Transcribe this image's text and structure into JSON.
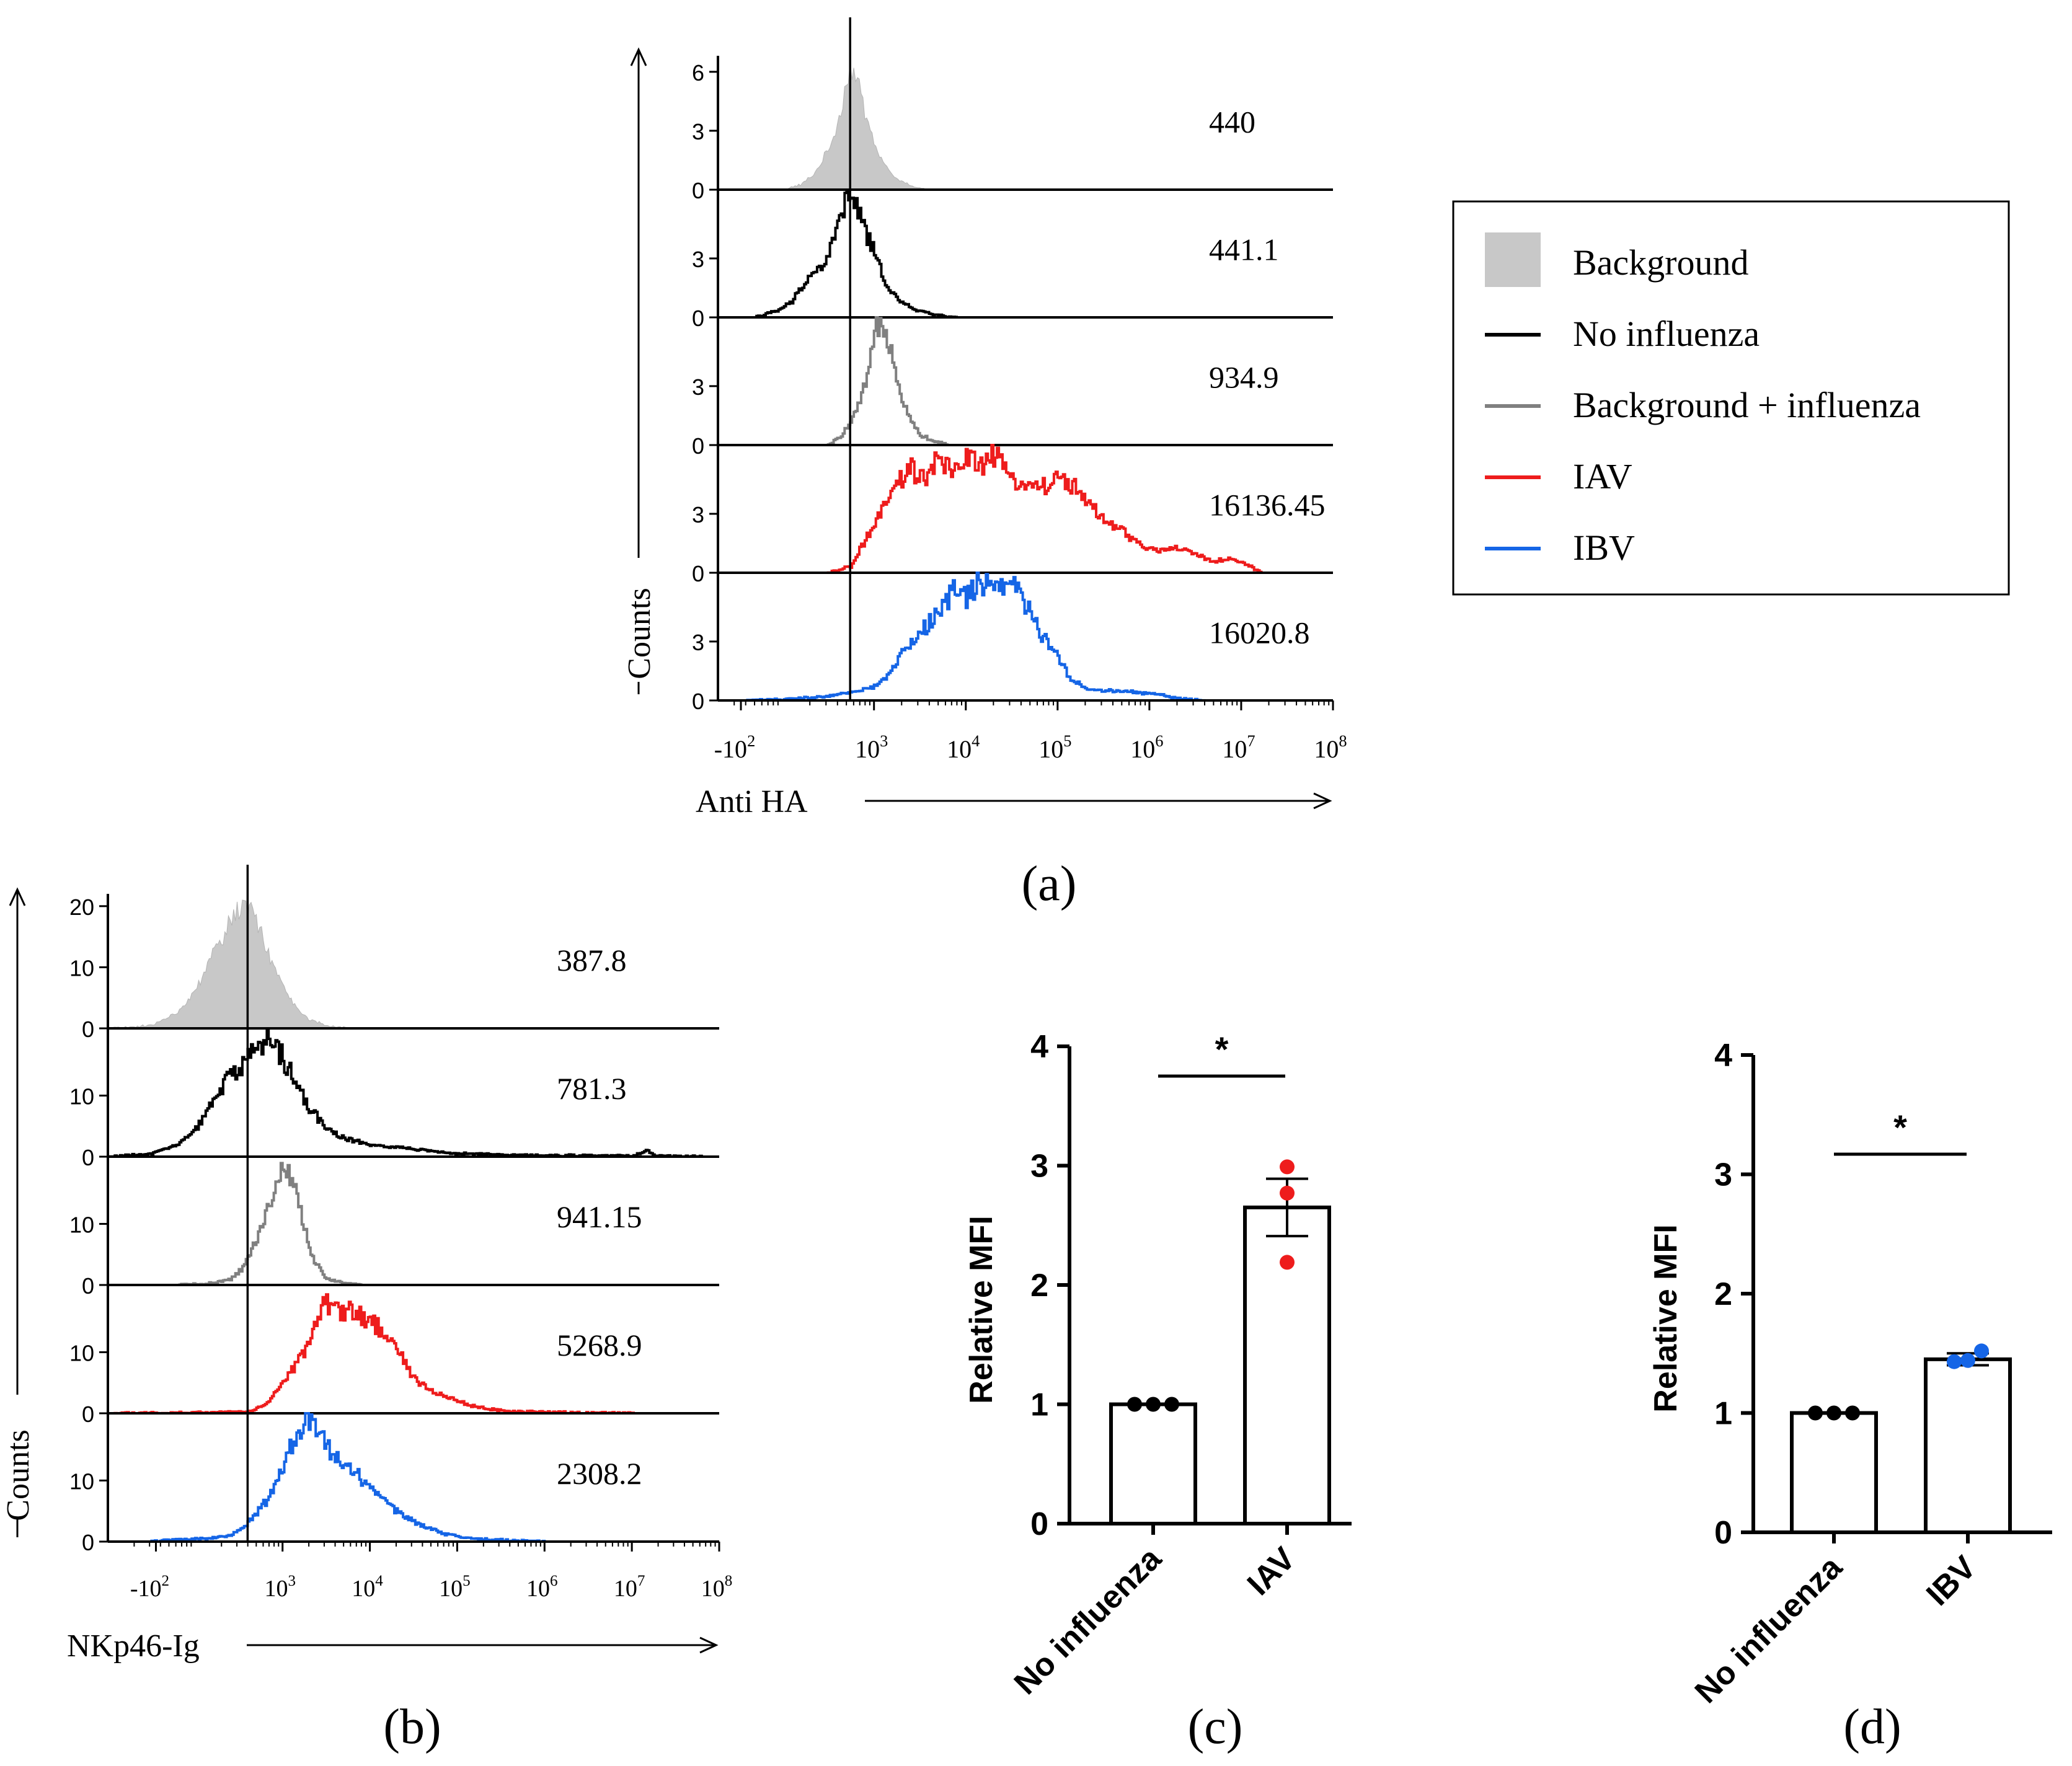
{
  "panels": {
    "a": {
      "label": "(a)"
    },
    "b": {
      "label": "(b)"
    },
    "c": {
      "label": "(c)"
    },
    "d": {
      "label": "(d)"
    }
  },
  "colors": {
    "background": "#c8c8c8",
    "no_influenza": "#000000",
    "background_influenza": "#808080",
    "iav": "#ee1c1c",
    "ibv": "#1565e6",
    "bar_fill": "#ffffff",
    "axis": "#000000"
  },
  "legend": {
    "items": [
      {
        "key": "background",
        "label": "Background",
        "kind": "fill"
      },
      {
        "key": "no_influenza",
        "label": "No influenza",
        "kind": "line"
      },
      {
        "key": "background_influenza",
        "label": "Background + influenza",
        "kind": "line"
      },
      {
        "key": "iav",
        "label": "IAV",
        "kind": "line"
      },
      {
        "key": "ibv",
        "label": "IBV",
        "kind": "line"
      }
    ]
  },
  "chart_data": [
    {
      "id": "a",
      "type": "histogram",
      "xlabel": "Anti HA",
      "ylabel": "Counts",
      "xscale": "log",
      "xticks": [
        {
          "base": "-10",
          "exp": "2",
          "log": 1.55
        },
        {
          "base": "10",
          "exp": "3",
          "log": 3
        },
        {
          "base": "10",
          "exp": "4",
          "log": 4
        },
        {
          "base": "10",
          "exp": "5",
          "log": 5
        },
        {
          "base": "10",
          "exp": "6",
          "log": 6
        },
        {
          "base": "10",
          "exp": "7",
          "log": 7
        },
        {
          "base": "10",
          "exp": "8",
          "log": 8
        }
      ],
      "xlim": [
        1.3,
        8
      ],
      "gate_log": 2.74,
      "ymax": 6.5,
      "y_tick_values": [
        0,
        3,
        6
      ],
      "y_tick_labels": [
        "0",
        "3",
        "6"
      ],
      "series": [
        {
          "name": "Background",
          "color_key": "background",
          "fill": true,
          "mfi": "440",
          "shape": [
            [
              2.0,
              0
            ],
            [
              2.2,
              0.25
            ],
            [
              2.35,
              0.8
            ],
            [
              2.5,
              2.0
            ],
            [
              2.6,
              3.3
            ],
            [
              2.68,
              5.0
            ],
            [
              2.74,
              6.4
            ],
            [
              2.82,
              5.5
            ],
            [
              2.92,
              3.6
            ],
            [
              3.05,
              1.8
            ],
            [
              3.2,
              0.7
            ],
            [
              3.4,
              0.2
            ],
            [
              3.6,
              0
            ]
          ]
        },
        {
          "name": "No influenza",
          "color_key": "no_influenza",
          "fill": false,
          "mfi": "441.1",
          "shape": [
            [
              1.7,
              0
            ],
            [
              1.95,
              0.35
            ],
            [
              2.1,
              0.8
            ],
            [
              2.2,
              1.5
            ],
            [
              2.3,
              2.2
            ],
            [
              2.42,
              2.5
            ],
            [
              2.52,
              3.5
            ],
            [
              2.62,
              5.0
            ],
            [
              2.72,
              6.3
            ],
            [
              2.82,
              5.4
            ],
            [
              2.93,
              4.0
            ],
            [
              3.05,
              2.6
            ],
            [
              3.15,
              1.5
            ],
            [
              3.3,
              0.7
            ],
            [
              3.5,
              0.3
            ],
            [
              3.7,
              0.1
            ],
            [
              3.9,
              0
            ]
          ]
        },
        {
          "name": "Background + influenza",
          "color_key": "background_influenza",
          "fill": false,
          "mfi": "934.9",
          "shape": [
            [
              2.5,
              0
            ],
            [
              2.62,
              0.4
            ],
            [
              2.75,
              1.2
            ],
            [
              2.85,
              2.3
            ],
            [
              2.92,
              3.5
            ],
            [
              2.97,
              4.6
            ],
            [
              3.02,
              6.0
            ],
            [
              3.08,
              6.3
            ],
            [
              3.15,
              5.5
            ],
            [
              3.22,
              4.0
            ],
            [
              3.3,
              2.4
            ],
            [
              3.4,
              1.2
            ],
            [
              3.5,
              0.5
            ],
            [
              3.65,
              0.2
            ],
            [
              3.8,
              0
            ]
          ]
        },
        {
          "name": "IAV",
          "color_key": "iav",
          "fill": false,
          "mfi": "16136.45",
          "shape": [
            [
              2.5,
              0
            ],
            [
              2.75,
              0.35
            ],
            [
              2.9,
              1.7
            ],
            [
              3.0,
              2.4
            ],
            [
              3.12,
              3.5
            ],
            [
              3.25,
              4.5
            ],
            [
              3.4,
              5.3
            ],
            [
              3.55,
              4.6
            ],
            [
              3.7,
              5.9
            ],
            [
              3.85,
              4.9
            ],
            [
              4.0,
              6.1
            ],
            [
              4.15,
              5.4
            ],
            [
              4.3,
              6.0
            ],
            [
              4.45,
              4.9
            ],
            [
              4.6,
              4.6
            ],
            [
              4.75,
              4.4
            ],
            [
              4.9,
              4.5
            ],
            [
              5.05,
              4.8
            ],
            [
              5.2,
              4.3
            ],
            [
              5.35,
              3.4
            ],
            [
              5.5,
              2.6
            ],
            [
              5.65,
              2.3
            ],
            [
              5.8,
              1.7
            ],
            [
              5.95,
              1.3
            ],
            [
              6.1,
              1.1
            ],
            [
              6.3,
              1.3
            ],
            [
              6.5,
              0.9
            ],
            [
              6.7,
              0.6
            ],
            [
              6.9,
              0.7
            ],
            [
              7.1,
              0.3
            ],
            [
              7.2,
              0.05
            ]
          ]
        },
        {
          "name": "IBV",
          "color_key": "ibv",
          "fill": false,
          "mfi": "16020.8",
          "shape": [
            [
              1.6,
              0
            ],
            [
              2.0,
              0.05
            ],
            [
              2.5,
              0.2
            ],
            [
              2.8,
              0.5
            ],
            [
              3.0,
              0.7
            ],
            [
              3.15,
              1.3
            ],
            [
              3.3,
              2.4
            ],
            [
              3.45,
              3.2
            ],
            [
              3.6,
              4.0
            ],
            [
              3.72,
              4.6
            ],
            [
              3.85,
              5.6
            ],
            [
              4.0,
              5.2
            ],
            [
              4.12,
              6.0
            ],
            [
              4.25,
              5.7
            ],
            [
              4.4,
              6.1
            ],
            [
              4.55,
              5.6
            ],
            [
              4.7,
              4.4
            ],
            [
              4.85,
              3.1
            ],
            [
              5.0,
              2.3
            ],
            [
              5.12,
              1.2
            ],
            [
              5.3,
              0.6
            ],
            [
              5.5,
              0.5
            ],
            [
              5.7,
              0.5
            ],
            [
              5.9,
              0.4
            ],
            [
              6.1,
              0.3
            ],
            [
              6.3,
              0.1
            ],
            [
              6.6,
              0
            ]
          ]
        }
      ]
    },
    {
      "id": "b",
      "type": "histogram",
      "xlabel": "NKp46-Ig",
      "ylabel": "Counts",
      "xscale": "log",
      "xticks": [
        {
          "base": "-10",
          "exp": "2",
          "log": 1.55
        },
        {
          "base": "10",
          "exp": "3",
          "log": 3
        },
        {
          "base": "10",
          "exp": "4",
          "log": 4
        },
        {
          "base": "10",
          "exp": "5",
          "log": 5
        },
        {
          "base": "10",
          "exp": "6",
          "log": 6
        },
        {
          "base": "10",
          "exp": "7",
          "log": 7
        },
        {
          "base": "10",
          "exp": "8",
          "log": 8
        }
      ],
      "xlim": [
        1.0,
        8
      ],
      "gate_log": 2.6,
      "ymax": 21,
      "y_tick_values": [
        0,
        10,
        20
      ],
      "y_tick_labels": [
        "0",
        "10",
        "20"
      ],
      "series": [
        {
          "name": "Background",
          "color_key": "background",
          "fill": true,
          "mfi": "387.8",
          "shape": [
            [
              1.0,
              0
            ],
            [
              1.5,
              0.5
            ],
            [
              1.8,
              2.5
            ],
            [
              2.0,
              6.0
            ],
            [
              2.2,
              12.0
            ],
            [
              2.4,
              17.5
            ],
            [
              2.55,
              20.5
            ],
            [
              2.7,
              17.5
            ],
            [
              2.85,
              12.0
            ],
            [
              3.0,
              7.0
            ],
            [
              3.15,
              3.5
            ],
            [
              3.3,
              1.5
            ],
            [
              3.5,
              0.5
            ],
            [
              3.8,
              0
            ]
          ]
        },
        {
          "name": "No influenza",
          "color_key": "no_influenza",
          "fill": false,
          "mfi": "781.3",
          "shape": [
            [
              1.0,
              0
            ],
            [
              1.5,
              0.5
            ],
            [
              1.8,
              2.0
            ],
            [
              2.0,
              4.5
            ],
            [
              2.2,
              9.0
            ],
            [
              2.35,
              12.5
            ],
            [
              2.5,
              14.0
            ],
            [
              2.6,
              16.5
            ],
            [
              2.75,
              18.5
            ],
            [
              2.88,
              19.5
            ],
            [
              3.0,
              16.0
            ],
            [
              3.15,
              12.0
            ],
            [
              3.3,
              8.0
            ],
            [
              3.5,
              4.5
            ],
            [
              3.7,
              3.0
            ],
            [
              4.0,
              2.0
            ],
            [
              4.5,
              1.2
            ],
            [
              5.0,
              0.5
            ],
            [
              5.5,
              0.3
            ],
            [
              6.0,
              0.2
            ],
            [
              6.5,
              0.2
            ],
            [
              7.0,
              0.1
            ],
            [
              7.18,
              1.0
            ],
            [
              7.25,
              0.1
            ],
            [
              7.8,
              0
            ]
          ]
        },
        {
          "name": "Background + influenza",
          "color_key": "background_influenza",
          "fill": false,
          "mfi": "941.15",
          "shape": [
            [
              1.8,
              0
            ],
            [
              2.2,
              0.3
            ],
            [
              2.4,
              1.0
            ],
            [
              2.55,
              3.0
            ],
            [
              2.7,
              8.0
            ],
            [
              2.85,
              14.0
            ],
            [
              2.95,
              19.0
            ],
            [
              3.05,
              19.5
            ],
            [
              3.15,
              15.0
            ],
            [
              3.25,
              9.0
            ],
            [
              3.35,
              4.0
            ],
            [
              3.5,
              1.0
            ],
            [
              3.7,
              0.3
            ],
            [
              3.9,
              0
            ]
          ]
        },
        {
          "name": "IAV",
          "color_key": "iav",
          "fill": false,
          "mfi": "5268.9",
          "shape": [
            [
              1.0,
              0
            ],
            [
              2.6,
              0.2
            ],
            [
              2.8,
              1.5
            ],
            [
              3.0,
              5.0
            ],
            [
              3.2,
              9.0
            ],
            [
              3.35,
              14.0
            ],
            [
              3.5,
              18.5
            ],
            [
              3.65,
              16.0
            ],
            [
              3.8,
              17.0
            ],
            [
              3.95,
              15.5
            ],
            [
              4.1,
              14.0
            ],
            [
              4.25,
              12.0
            ],
            [
              4.4,
              8.0
            ],
            [
              4.55,
              5.0
            ],
            [
              4.7,
              3.5
            ],
            [
              4.9,
              2.5
            ],
            [
              5.1,
              1.5
            ],
            [
              5.3,
              0.8
            ],
            [
              5.6,
              0.3
            ],
            [
              6.0,
              0.2
            ],
            [
              6.5,
              0.1
            ],
            [
              7.0,
              0
            ]
          ]
        },
        {
          "name": "IBV",
          "color_key": "ibv",
          "fill": false,
          "mfi": "2308.2",
          "shape": [
            [
              1.5,
              0
            ],
            [
              1.8,
              0.3
            ],
            [
              2.1,
              0.5
            ],
            [
              2.4,
              1.0
            ],
            [
              2.6,
              3.0
            ],
            [
              2.8,
              6.5
            ],
            [
              2.95,
              11.0
            ],
            [
              3.1,
              16.0
            ],
            [
              3.2,
              18.5
            ],
            [
              3.3,
              20.0
            ],
            [
              3.4,
              17.0
            ],
            [
              3.55,
              15.0
            ],
            [
              3.7,
              13.0
            ],
            [
              3.85,
              11.0
            ],
            [
              4.0,
              8.5
            ],
            [
              4.2,
              6.0
            ],
            [
              4.4,
              4.0
            ],
            [
              4.6,
              2.5
            ],
            [
              4.8,
              1.5
            ],
            [
              5.0,
              0.8
            ],
            [
              5.3,
              0.4
            ],
            [
              5.6,
              0.2
            ],
            [
              6.0,
              0
            ]
          ]
        }
      ]
    },
    {
      "id": "c",
      "type": "bar",
      "ylabel": "Relative MFI",
      "ylim": [
        0,
        4
      ],
      "yticks": [
        0,
        1,
        2,
        3,
        4
      ],
      "categories": [
        "No influenza",
        "IAV"
      ],
      "values": [
        1.0,
        2.65
      ],
      "sem": [
        0,
        0.24
      ],
      "points": [
        [
          1.0,
          1.0,
          1.0
        ],
        [
          2.99,
          2.77,
          2.19
        ]
      ],
      "point_colors": [
        "no_influenza",
        "iav"
      ],
      "significance": "*"
    },
    {
      "id": "d",
      "type": "bar",
      "ylabel": "Relative MFI",
      "ylim": [
        0,
        4
      ],
      "yticks": [
        0,
        1,
        2,
        3,
        4
      ],
      "categories": [
        "No influenza",
        "IBV"
      ],
      "values": [
        1.0,
        1.45
      ],
      "sem": [
        0,
        0.05
      ],
      "points": [
        [
          1.0,
          1.0,
          1.0
        ],
        [
          1.43,
          1.52,
          1.44
        ]
      ],
      "point_colors": [
        "no_influenza",
        "ibv"
      ],
      "significance": "*"
    }
  ]
}
